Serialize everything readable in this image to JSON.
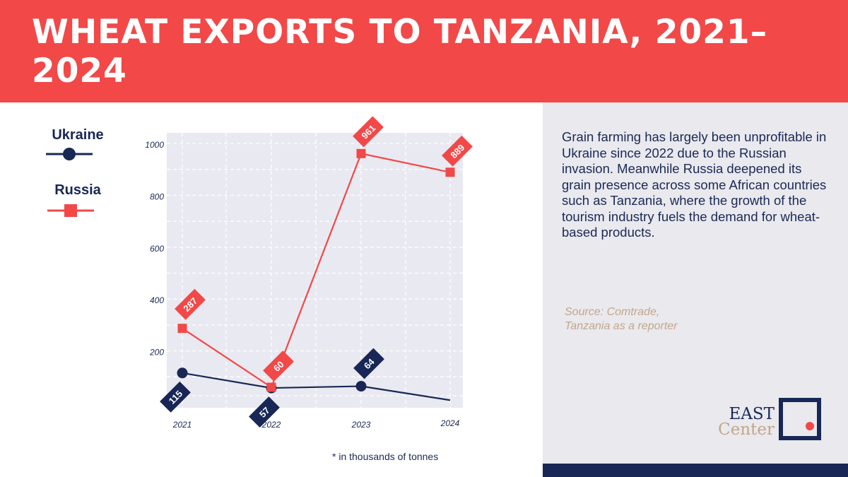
{
  "header": {
    "title": "WHEAT EXPORTS TO TANZANIA, 2021–2024"
  },
  "legend": {
    "ukraine_label": "Ukraine",
    "russia_label": "Russia"
  },
  "sidebar": {
    "description": "Grain farming has largely been unprofitable in Ukraine since 2022 due to the Russian invasion. Meanwhile Russia deepened its grain presence across some African countries such as Tanzania, where the growth of the tourism industry fuels the demand for wheat-based products.",
    "source_line1": "Source: Comtrade,",
    "source_line2": "Tanzania as a reporter"
  },
  "logo": {
    "word1": "EAST",
    "word2": "Center"
  },
  "footnote": "*  in thousands of tonnes",
  "colors": {
    "header_bg": "#f24848",
    "navy": "#182755",
    "red": "#f24848",
    "plot_bg": "#e9e9f1",
    "sidebar_bg": "#e9e9ee",
    "tan": "#c4a68a"
  },
  "chart_data": {
    "type": "line",
    "title": "WHEAT EXPORTS TO TANZANIA, 2021–2024",
    "xlabel": "",
    "ylabel": "",
    "unit_note": "in thousands of tonnes",
    "categories": [
      "2021",
      "2022",
      "2023",
      "2024"
    ],
    "y_ticks": [
      200,
      400,
      600,
      800,
      1000
    ],
    "ylim": [
      0,
      1050
    ],
    "grid": true,
    "series": [
      {
        "name": "Ukraine",
        "values": [
          115,
          57,
          64,
          10
        ],
        "labels": [
          "115",
          "57",
          "64",
          ""
        ],
        "marker": "circle",
        "color": "#182755"
      },
      {
        "name": "Russia",
        "values": [
          287,
          60,
          961,
          889
        ],
        "labels": [
          "287",
          "60",
          "961",
          "889"
        ],
        "marker": "square",
        "color": "#f24848"
      }
    ]
  }
}
